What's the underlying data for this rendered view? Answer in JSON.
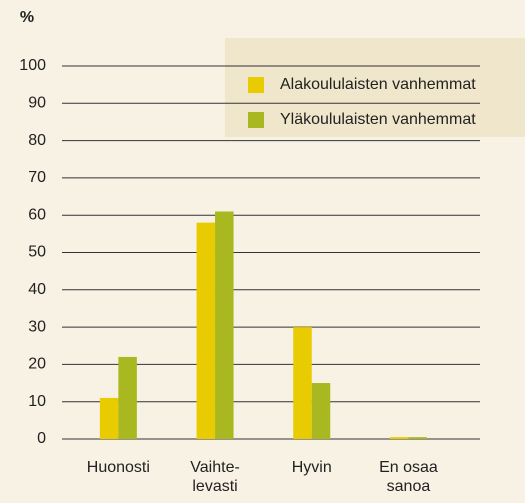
{
  "chart_data": {
    "type": "bar",
    "title": "%",
    "categories": [
      "Huonosti",
      "Vaihte-\nlevasti",
      "Hyvin",
      "En osaa\nsanoa"
    ],
    "series": [
      {
        "name": "Alakoululaisten vanhemmat",
        "color": "#e8cb00",
        "values": [
          11,
          58,
          30,
          0.5
        ]
      },
      {
        "name": "Yläkoululaisten vanhemmat",
        "color": "#a9b820",
        "values": [
          22,
          61,
          15,
          0.5
        ]
      }
    ],
    "ylim": [
      0,
      100
    ],
    "yticks": [
      0,
      10,
      20,
      30,
      40,
      50,
      60,
      70,
      80,
      90,
      100
    ],
    "grid": true
  }
}
